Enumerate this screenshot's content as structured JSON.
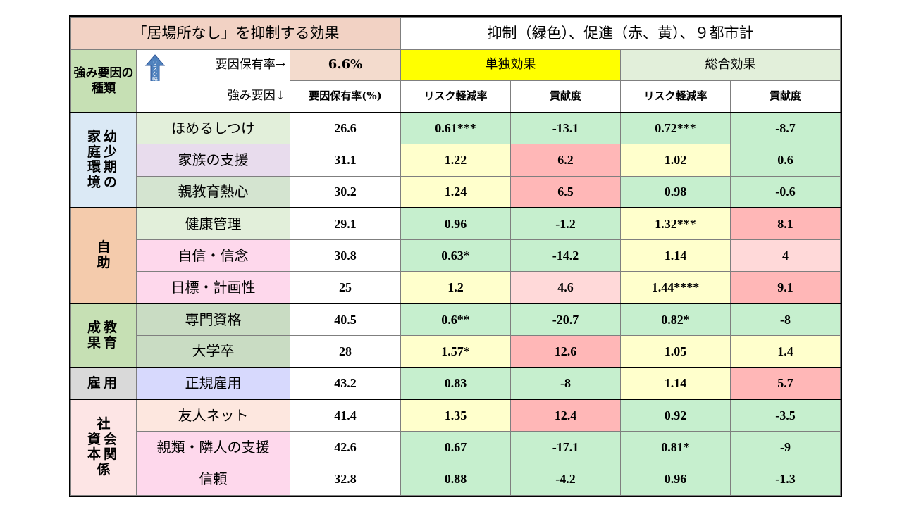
{
  "title": "「居場所なし」を抑制する効果",
  "subtitle": "抑制（緑色）、促進（赤、黄）、９都市計",
  "header": {
    "type_label": "強み要因の種類",
    "arrow_label": "リスク軽減",
    "factor_rate_label": "要因保有率→",
    "factor_rate_value": "6.6%",
    "single_effect": "単独効果",
    "total_effect": "総合効果",
    "strength_factor_label": "強み要因↓",
    "rate_col": "要因保有率(%)",
    "risk_reduction": "リスク軽減率",
    "contribution": "貢献度"
  },
  "colors": {
    "title_bg": "#f2d2c4",
    "rate_bg": "#f3dbcd",
    "single_bg": "#ffff00",
    "total_bg": "#e2efda",
    "type_hdr_bg": "#c6e0b4",
    "green": "#c6efce",
    "yellow": "#ffffcc",
    "red": "#ffb7b7",
    "pink": "#ffd9d9",
    "arrow": "#4f81bd"
  },
  "chart_data": {
    "type": "table",
    "groups": [
      {
        "name": "家庭環境 幼少期の",
        "label_lines": [
          "家幼",
          "庭少",
          "環期",
          "境の"
        ],
        "rows": 3
      },
      {
        "name": "自助",
        "label_lines": [
          "自",
          "助"
        ],
        "rows": 3
      },
      {
        "name": "教育成果",
        "label_lines": [
          "成教",
          "果育"
        ],
        "rows": 2
      },
      {
        "name": "雇用",
        "label_lines": [
          "雇用"
        ],
        "rows": 1
      },
      {
        "name": "社会関係資本",
        "label_lines": [
          "社",
          "資会",
          "本関",
          "係"
        ],
        "rows": 3
      }
    ],
    "rows": [
      {
        "factor": "ほめるしつけ",
        "rate": "26.6",
        "single_rr": "0.61***",
        "single_contrib": "-13.1",
        "total_rr": "0.72***",
        "total_contrib": "-8.7"
      },
      {
        "factor": "家族の支援",
        "rate": "31.1",
        "single_rr": "1.22",
        "single_contrib": "6.2",
        "total_rr": "1.02",
        "total_contrib": "0.6"
      },
      {
        "factor": "親教育熱心",
        "rate": "30.2",
        "single_rr": "1.24",
        "single_contrib": "6.5",
        "total_rr": "0.98",
        "total_contrib": "-0.6"
      },
      {
        "factor": "健康管理",
        "rate": "29.1",
        "single_rr": "0.96",
        "single_contrib": "-1.2",
        "total_rr": "1.32***",
        "total_contrib": "8.1"
      },
      {
        "factor": "自信・信念",
        "rate": "30.8",
        "single_rr": "0.63*",
        "single_contrib": "-14.2",
        "total_rr": "1.14",
        "total_contrib": "4"
      },
      {
        "factor": "日標・計画性",
        "rate": "25",
        "single_rr": "1.2",
        "single_contrib": "4.6",
        "total_rr": "1.44****",
        "total_contrib": "9.1"
      },
      {
        "factor": "専門資格",
        "rate": "40.5",
        "single_rr": "0.6**",
        "single_contrib": "-20.7",
        "total_rr": "0.82*",
        "total_contrib": "-8"
      },
      {
        "factor": "大学卒",
        "rate": "28",
        "single_rr": "1.57*",
        "single_contrib": "12.6",
        "total_rr": "1.05",
        "total_contrib": "1.4"
      },
      {
        "factor": "正規雇用",
        "rate": "43.2",
        "single_rr": "0.83",
        "single_contrib": "-8",
        "total_rr": "1.14",
        "total_contrib": "5.7"
      },
      {
        "factor": "友人ネット",
        "rate": "41.4",
        "single_rr": "1.35",
        "single_contrib": "12.4",
        "total_rr": "0.92",
        "total_contrib": "-3.5"
      },
      {
        "factor": "親類・隣人の支援",
        "rate": "42.6",
        "single_rr": "0.67",
        "single_contrib": "-17.1",
        "total_rr": "0.81*",
        "total_contrib": "-9"
      },
      {
        "factor": "信頼",
        "rate": "32.8",
        "single_rr": "0.88",
        "single_contrib": "-4.2",
        "total_rr": "0.96",
        "total_contrib": "-1.3"
      }
    ]
  }
}
